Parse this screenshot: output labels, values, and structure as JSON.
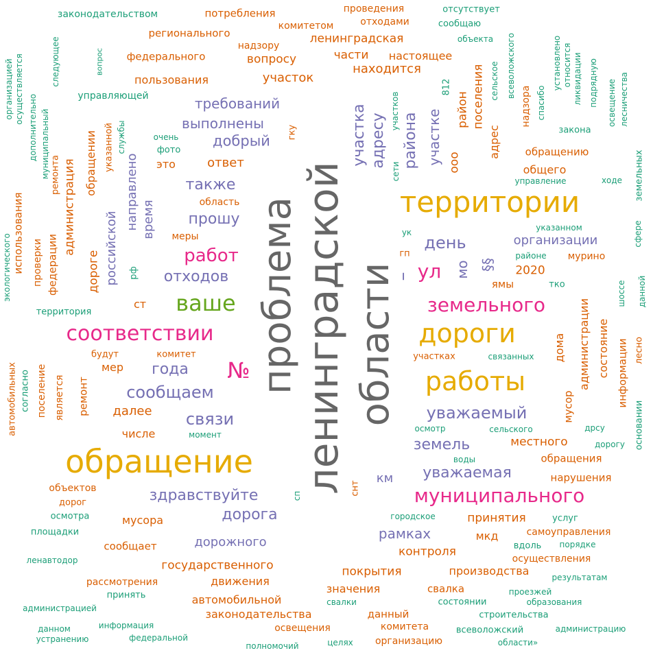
{
  "palette": {
    "grey": "#666666",
    "gold": "#e6ab02",
    "magenta": "#e7298a",
    "purple": "#7570b3",
    "orange": "#d95f02",
    "teal": "#1b9e77",
    "green": "#66a61e"
  },
  "words": [
    {
      "text": "законодательством",
      "color": "teal",
      "weight": 14
    },
    {
      "text": "потребления",
      "color": "orange",
      "weight": 15
    },
    {
      "text": "проведения",
      "color": "orange",
      "weight": 14
    },
    {
      "text": "отходами",
      "color": "orange",
      "weight": 14
    },
    {
      "text": "отсутствует",
      "color": "teal",
      "weight": 13
    },
    {
      "text": "сообщаю",
      "color": "teal",
      "weight": 13
    },
    {
      "text": "комитетом",
      "color": "orange",
      "weight": 14
    },
    {
      "text": "регионального",
      "color": "orange",
      "weight": 15
    },
    {
      "text": "ленинградская",
      "color": "orange",
      "weight": 17
    },
    {
      "text": "объекта",
      "color": "teal",
      "weight": 12
    },
    {
      "text": "надзору",
      "color": "orange",
      "weight": 14
    },
    {
      "text": "части",
      "color": "orange",
      "weight": 17
    },
    {
      "text": "настоящее",
      "color": "orange",
      "weight": 16
    },
    {
      "text": "федерального",
      "color": "orange",
      "weight": 15
    },
    {
      "text": "вопросу",
      "color": "orange",
      "weight": 17
    },
    {
      "text": "находится",
      "color": "orange",
      "weight": 18
    },
    {
      "text": "пользования",
      "color": "orange",
      "weight": 16
    },
    {
      "text": "участок",
      "color": "orange",
      "weight": 18
    },
    {
      "text": "управляющей",
      "color": "teal",
      "weight": 14
    },
    {
      "text": "требований",
      "color": "purple",
      "weight": 20
    },
    {
      "text": "выполнены",
      "color": "purple",
      "weight": 20
    },
    {
      "text": "добрый",
      "color": "purple",
      "weight": 21
    },
    {
      "text": "очень",
      "color": "teal",
      "weight": 12
    },
    {
      "text": "фото",
      "color": "teal",
      "weight": 13
    },
    {
      "text": "это",
      "color": "orange",
      "weight": 16
    },
    {
      "text": "ответ",
      "color": "orange",
      "weight": 18
    },
    {
      "text": "гку",
      "color": "orange",
      "weight": 13
    },
    {
      "text": "также",
      "color": "purple",
      "weight": 22
    },
    {
      "text": "область",
      "color": "orange",
      "weight": 14
    },
    {
      "text": "прошу",
      "color": "purple",
      "weight": 22
    },
    {
      "text": "меры",
      "color": "orange",
      "weight": 14
    },
    {
      "text": "работ",
      "color": "magenta",
      "weight": 26
    },
    {
      "text": "отходов",
      "color": "purple",
      "weight": 22
    },
    {
      "text": "ваше",
      "color": "green",
      "weight": 32
    },
    {
      "text": "ст",
      "color": "orange",
      "weight": 16
    },
    {
      "text": "соответствии",
      "color": "magenta",
      "weight": 30
    },
    {
      "text": "территория",
      "color": "teal",
      "weight": 13
    },
    {
      "text": "будут",
      "color": "orange",
      "weight": 13
    },
    {
      "text": "комитет",
      "color": "orange",
      "weight": 13
    },
    {
      "text": "мер",
      "color": "orange",
      "weight": 16
    },
    {
      "text": "года",
      "color": "purple",
      "weight": 22
    },
    {
      "text": "№",
      "color": "magenta",
      "weight": 32
    },
    {
      "text": "сообщаем",
      "color": "purple",
      "weight": 24
    },
    {
      "text": "далее",
      "color": "orange",
      "weight": 18
    },
    {
      "text": "связи",
      "color": "purple",
      "weight": 24
    },
    {
      "text": "числе",
      "color": "orange",
      "weight": 16
    },
    {
      "text": "момент",
      "color": "teal",
      "weight": 12
    },
    {
      "text": "обращение",
      "color": "gold",
      "weight": 46
    },
    {
      "text": "объектов",
      "color": "orange",
      "weight": 14
    },
    {
      "text": "дорог",
      "color": "orange",
      "weight": 13
    },
    {
      "text": "осмотра",
      "color": "teal",
      "weight": 13
    },
    {
      "text": "площадки",
      "color": "teal",
      "weight": 13
    },
    {
      "text": "ленавтодор",
      "color": "teal",
      "weight": 12
    },
    {
      "text": "здравствуйте",
      "color": "purple",
      "weight": 22
    },
    {
      "text": "дорога",
      "color": "purple",
      "weight": 22
    },
    {
      "text": "мусора",
      "color": "orange",
      "weight": 16
    },
    {
      "text": "сообщает",
      "color": "orange",
      "weight": 15
    },
    {
      "text": "дорожного",
      "color": "purple",
      "weight": 18
    },
    {
      "text": "государственного",
      "color": "orange",
      "weight": 17
    },
    {
      "text": "рассмотрения",
      "color": "orange",
      "weight": 14
    },
    {
      "text": "принять",
      "color": "teal",
      "weight": 13
    },
    {
      "text": "движения",
      "color": "orange",
      "weight": 16
    },
    {
      "text": "администрацией",
      "color": "teal",
      "weight": 12
    },
    {
      "text": "автомобильной",
      "color": "orange",
      "weight": 16
    },
    {
      "text": "законодательства",
      "color": "orange",
      "weight": 16
    },
    {
      "text": "данном",
      "color": "teal",
      "weight": 12
    },
    {
      "text": "устранению",
      "color": "teal",
      "weight": 12
    },
    {
      "text": "информация",
      "color": "teal",
      "weight": 12
    },
    {
      "text": "федеральной",
      "color": "teal",
      "weight": 12
    },
    {
      "text": "освещения",
      "color": "orange",
      "weight": 14
    },
    {
      "text": "полномочий",
      "color": "teal",
      "weight": 12
    },
    {
      "text": "целях",
      "color": "teal",
      "weight": 12
    },
    {
      "text": "сп",
      "color": "teal",
      "weight": 12
    },
    {
      "text": "снт",
      "color": "orange",
      "weight": 13
    },
    {
      "text": "км",
      "color": "purple",
      "weight": 18
    },
    {
      "text": "проблема",
      "color": "grey",
      "weight": 56
    },
    {
      "text": "ленинградской",
      "color": "grey",
      "weight": 60
    },
    {
      "text": "области",
      "color": "grey",
      "weight": 56
    },
    {
      "text": "территории",
      "color": "gold",
      "weight": 42
    },
    {
      "text": "день",
      "color": "purple",
      "weight": 24
    },
    {
      "text": "организации",
      "color": "purple",
      "weight": 18
    },
    {
      "text": "ул",
      "color": "magenta",
      "weight": 28
    },
    {
      "text": "земельного",
      "color": "magenta",
      "weight": 28
    },
    {
      "text": "дороги",
      "color": "gold",
      "weight": 38
    },
    {
      "text": "работы",
      "color": "gold",
      "weight": 38
    },
    {
      "text": "уважаемый",
      "color": "purple",
      "weight": 24
    },
    {
      "text": "земель",
      "color": "purple",
      "weight": 22
    },
    {
      "text": "уважаемая",
      "color": "purple",
      "weight": 22
    },
    {
      "text": "муниципального",
      "color": "magenta",
      "weight": 28
    },
    {
      "text": "рамках",
      "color": "purple",
      "weight": 20
    },
    {
      "text": "контроля",
      "color": "orange",
      "weight": 17
    },
    {
      "text": "принятия",
      "color": "orange",
      "weight": 17
    },
    {
      "text": "мкд",
      "color": "orange",
      "weight": 16
    },
    {
      "text": "покрытия",
      "color": "orange",
      "weight": 17
    },
    {
      "text": "производства",
      "color": "orange",
      "weight": 16
    },
    {
      "text": "значения",
      "color": "orange",
      "weight": 16
    },
    {
      "text": "свалка",
      "color": "orange",
      "weight": 15
    },
    {
      "text": "свалки",
      "color": "teal",
      "weight": 12
    },
    {
      "text": "состоянии",
      "color": "teal",
      "weight": 13
    },
    {
      "text": "данный",
      "color": "orange",
      "weight": 15
    },
    {
      "text": "комитета",
      "color": "orange",
      "weight": 14
    },
    {
      "text": "организацию",
      "color": "orange",
      "weight": 14
    },
    {
      "text": "всеволожский",
      "color": "teal",
      "weight": 13
    },
    {
      "text": "строительства",
      "color": "teal",
      "weight": 13
    },
    {
      "text": "области»",
      "color": "teal",
      "weight": 12
    },
    {
      "text": "проезжей",
      "color": "teal",
      "weight": 12
    },
    {
      "text": "образования",
      "color": "teal",
      "weight": 12
    },
    {
      "text": "администрацию",
      "color": "teal",
      "weight": 12
    },
    {
      "text": "городское",
      "color": "teal",
      "weight": 12
    },
    {
      "text": "услуг",
      "color": "teal",
      "weight": 13
    },
    {
      "text": "самоуправления",
      "color": "orange",
      "weight": 14
    },
    {
      "text": "вдоль",
      "color": "teal",
      "weight": 13
    },
    {
      "text": "порядке",
      "color": "teal",
      "weight": 12
    },
    {
      "text": "осуществления",
      "color": "orange",
      "weight": 14
    },
    {
      "text": "результатам",
      "color": "teal",
      "weight": 12
    },
    {
      "text": "нарушения",
      "color": "orange",
      "weight": 15
    },
    {
      "text": "обращения",
      "color": "orange",
      "weight": 15
    },
    {
      "text": "местного",
      "color": "orange",
      "weight": 17
    },
    {
      "text": "воды",
      "color": "teal",
      "weight": 12
    },
    {
      "text": "дорогу",
      "color": "teal",
      "weight": 12
    },
    {
      "text": "дрсу",
      "color": "teal",
      "weight": 12
    },
    {
      "text": "осмотр",
      "color": "teal",
      "weight": 12
    },
    {
      "text": "сельского",
      "color": "teal",
      "weight": 12
    },
    {
      "text": "участках",
      "color": "orange",
      "weight": 13
    },
    {
      "text": "связанных",
      "color": "teal",
      "weight": 12
    },
    {
      "text": "2020",
      "color": "orange",
      "weight": 17
    },
    {
      "text": "ямы",
      "color": "orange",
      "weight": 15
    },
    {
      "text": "тко",
      "color": "teal",
      "weight": 13
    },
    {
      "text": "районе",
      "color": "teal",
      "weight": 12
    },
    {
      "text": "мурино",
      "color": "orange",
      "weight": 14
    },
    {
      "text": "указанном",
      "color": "teal",
      "weight": 12
    },
    {
      "text": "ук",
      "color": "teal",
      "weight": 12
    },
    {
      "text": "гп",
      "color": "orange",
      "weight": 13
    },
    {
      "text": "обращению",
      "color": "orange",
      "weight": 15
    },
    {
      "text": "общего",
      "color": "orange",
      "weight": 16
    },
    {
      "text": "управление",
      "color": "teal",
      "weight": 12
    },
    {
      "text": "ходе",
      "color": "teal",
      "weight": 12
    },
    {
      "text": "закона",
      "color": "teal",
      "weight": 13
    },
    {
      "text": "спасибо",
      "color": "teal",
      "weight": 12
    },
    {
      "text": "надзора",
      "color": "orange",
      "weight": 14
    },
    {
      "text": "адрес",
      "color": "orange",
      "weight": 16
    },
    {
      "text": "поселения",
      "color": "orange",
      "weight": 17
    },
    {
      "text": "район",
      "color": "orange",
      "weight": 17
    },
    {
      "text": "ооо",
      "color": "orange",
      "weight": 17
    },
    {
      "text": "участке",
      "color": "purple",
      "weight": 20
    },
    {
      "text": "района",
      "color": "purple",
      "weight": 22
    },
    {
      "text": "адресу",
      "color": "purple",
      "weight": 22
    },
    {
      "text": "участка",
      "color": "purple",
      "weight": 22
    },
    {
      "text": "участков",
      "color": "teal",
      "weight": 12
    },
    {
      "text": "сети",
      "color": "teal",
      "weight": 12
    },
    {
      "text": "812",
      "color": "teal",
      "weight": 13
    },
    {
      "text": "сельское",
      "color": "teal",
      "weight": 12
    },
    {
      "text": "всеволожского",
      "color": "teal",
      "weight": 12
    },
    {
      "text": "установлено",
      "color": "teal",
      "weight": 12
    },
    {
      "text": "относится",
      "color": "teal",
      "weight": 12
    },
    {
      "text": "ликвидации",
      "color": "teal",
      "weight": 12
    },
    {
      "text": "подрядную",
      "color": "teal",
      "weight": 12
    },
    {
      "text": "освещение",
      "color": "teal",
      "weight": 12
    },
    {
      "text": "лесничества",
      "color": "teal",
      "weight": 12
    },
    {
      "text": "земельных",
      "color": "teal",
      "weight": 13
    },
    {
      "text": "сфере",
      "color": "teal",
      "weight": 12
    },
    {
      "text": "данной",
      "color": "teal",
      "weight": 12
    },
    {
      "text": "шоссе",
      "color": "teal",
      "weight": 12
    },
    {
      "text": "администрации",
      "color": "orange",
      "weight": 16
    },
    {
      "text": "состояние",
      "color": "orange",
      "weight": 16
    },
    {
      "text": "дома",
      "color": "orange",
      "weight": 16
    },
    {
      "text": "информации",
      "color": "orange",
      "weight": 15
    },
    {
      "text": "лесно",
      "color": "orange",
      "weight": 13
    },
    {
      "text": "мусор",
      "color": "orange",
      "weight": 15
    },
    {
      "text": "основании",
      "color": "teal",
      "weight": 13
    },
    {
      "text": "мо",
      "color": "purple",
      "weight": 20
    },
    {
      "text": "§§",
      "color": "purple",
      "weight": 20
    },
    {
      "text": "–",
      "color": "purple",
      "weight": 26
    },
    {
      "text": "организацией",
      "color": "teal",
      "weight": 12
    },
    {
      "text": "осуществляется",
      "color": "teal",
      "weight": 12
    },
    {
      "text": "вопрос",
      "color": "teal",
      "weight": 11
    },
    {
      "text": "следующее",
      "color": "teal",
      "weight": 12
    },
    {
      "text": "дополнительно",
      "color": "teal",
      "weight": 12
    },
    {
      "text": "муниципальный",
      "color": "teal",
      "weight": 12
    },
    {
      "text": "ремонта",
      "color": "orange",
      "weight": 13
    },
    {
      "text": "администрация",
      "color": "orange",
      "weight": 17
    },
    {
      "text": "обращении",
      "color": "orange",
      "weight": 16
    },
    {
      "text": "указанной",
      "color": "orange",
      "weight": 13
    },
    {
      "text": "службы",
      "color": "teal",
      "weight": 12
    },
    {
      "text": "направлено",
      "color": "purple",
      "weight": 18
    },
    {
      "text": "время",
      "color": "purple",
      "weight": 18
    },
    {
      "text": "российской",
      "color": "purple",
      "weight": 18
    },
    {
      "text": "рф",
      "color": "teal",
      "weight": 13
    },
    {
      "text": "дороге",
      "color": "orange",
      "weight": 17
    },
    {
      "text": "использования",
      "color": "orange",
      "weight": 15
    },
    {
      "text": "экологического",
      "color": "teal",
      "weight": 12
    },
    {
      "text": "проверки",
      "color": "orange",
      "weight": 14
    },
    {
      "text": "федерации",
      "color": "orange",
      "weight": 15
    },
    {
      "text": "автомобильных",
      "color": "orange",
      "weight": 13
    },
    {
      "text": "согласно",
      "color": "teal",
      "weight": 13
    },
    {
      "text": "поселение",
      "color": "orange",
      "weight": 14
    },
    {
      "text": "является",
      "color": "orange",
      "weight": 14
    },
    {
      "text": "ремонт",
      "color": "orange",
      "weight": 15
    }
  ]
}
